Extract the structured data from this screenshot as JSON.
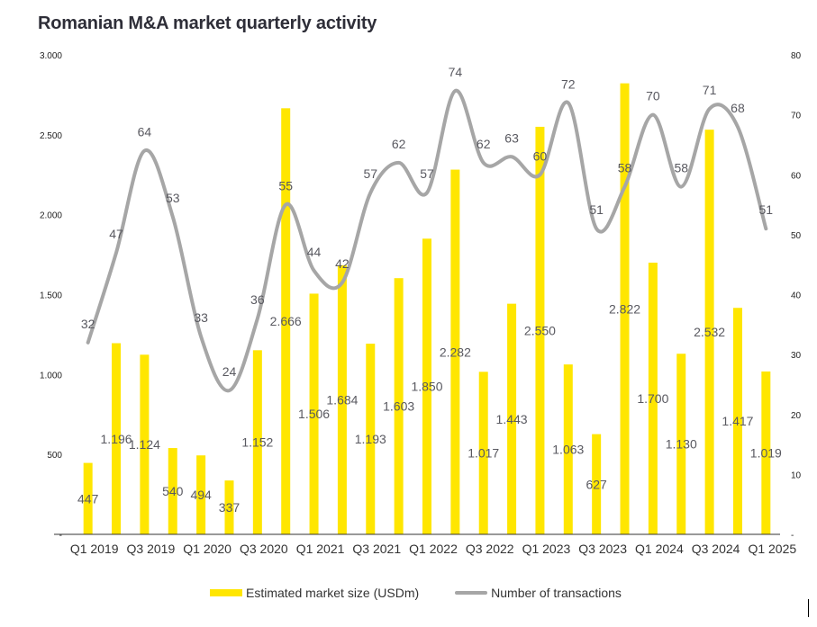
{
  "chart_data": {
    "type": "bar+line",
    "title": "Romanian M&A market quarterly activity",
    "xlabel": "",
    "ylabel_left": "",
    "ylabel_right": "",
    "categories": [
      "Q1 2019",
      "Q2 2019",
      "Q3 2019",
      "Q4 2019",
      "Q1 2020",
      "Q2 2020",
      "Q3 2020",
      "Q4 2020",
      "Q1 2021",
      "Q2 2021",
      "Q3 2021",
      "Q4 2021",
      "Q1 2022",
      "Q2 2022",
      "Q3 2022",
      "Q4 2022",
      "Q1 2023",
      "Q2 2023",
      "Q3 2023",
      "Q4 2023",
      "Q1 2024",
      "Q2 2024",
      "Q3 2024",
      "Q4 2024",
      "Q1 2025"
    ],
    "x_tick_labels": [
      "Q1 2019",
      "Q3 2019",
      "Q1 2020",
      "Q3 2020",
      "Q1 2021",
      "Q3 2021",
      "Q1 2022",
      "Q3 2022",
      "Q1 2023",
      "Q3 2023",
      "Q1 2024",
      "Q3 2024",
      "Q1 2025"
    ],
    "series": [
      {
        "name": "Estimated market size (USDm)",
        "type": "bar",
        "axis": "left",
        "color": "#ffe600",
        "values": [
          447,
          1196,
          1124,
          540,
          494,
          337,
          1152,
          2666,
          1506,
          1684,
          1193,
          1603,
          1850,
          2282,
          1017,
          1443,
          2550,
          1063,
          627,
          2822,
          1700,
          1130,
          2532,
          1417,
          1019
        ],
        "labels": [
          "447",
          "1.196",
          "1.124",
          "540",
          "494",
          "337",
          "1.152",
          "2.666",
          "1.506",
          "1.684",
          "1.193",
          "1.603",
          "1.850",
          "2.282",
          "1.017",
          "1.443",
          "2.550",
          "1.063",
          "627",
          "2.822",
          "1.700",
          "1.130",
          "2.532",
          "1.417",
          "1.019"
        ]
      },
      {
        "name": "Number of transactions",
        "type": "line",
        "axis": "right",
        "color": "#a6a6a6",
        "smooth": true,
        "values": [
          32,
          47,
          64,
          53,
          33,
          24,
          36,
          55,
          44,
          42,
          57,
          62,
          57,
          74,
          62,
          63,
          60,
          72,
          51,
          58,
          70,
          58,
          71,
          68,
          51
        ]
      }
    ],
    "y_left": {
      "range": [
        0,
        3000
      ],
      "ticks": [
        0,
        500,
        1000,
        1500,
        2000,
        2500,
        3000
      ],
      "tick_labels": [
        "-",
        "500",
        "1.000",
        "1.500",
        "2.000",
        "2.500",
        "3.000"
      ]
    },
    "y_right": {
      "range": [
        0,
        80
      ],
      "ticks": [
        0,
        10,
        20,
        30,
        40,
        50,
        60,
        70,
        80
      ],
      "tick_labels": [
        "-",
        "10",
        "20",
        "30",
        "40",
        "50",
        "60",
        "70",
        "80"
      ]
    },
    "grid": false,
    "legend_position": "bottom-center",
    "legend": [
      "Estimated market size (USDm)",
      "Number of transactions"
    ]
  }
}
